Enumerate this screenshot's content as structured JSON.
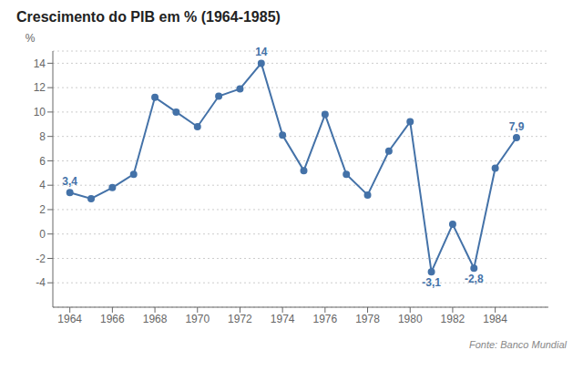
{
  "chart_data": {
    "type": "line",
    "title": "Crescimento do PIB em % (1964-1985)",
    "y_label": "%",
    "source": "Fonte: Banco Mundial",
    "x": [
      1964,
      1965,
      1966,
      1967,
      1968,
      1969,
      1970,
      1971,
      1972,
      1973,
      1974,
      1975,
      1976,
      1977,
      1978,
      1979,
      1980,
      1981,
      1982,
      1983,
      1984,
      1985
    ],
    "values": [
      3.4,
      2.9,
      3.8,
      4.9,
      11.2,
      10.0,
      8.8,
      11.3,
      11.9,
      14.0,
      8.1,
      5.2,
      9.8,
      4.9,
      3.2,
      6.8,
      9.2,
      -3.1,
      0.8,
      -2.8,
      5.4,
      7.9
    ],
    "color": "#4472a8",
    "marker": "circle",
    "xlim": [
      1963.2,
      1986.5
    ],
    "xticks": [
      1964,
      1966,
      1968,
      1970,
      1972,
      1974,
      1976,
      1978,
      1980,
      1982,
      1984
    ],
    "ylim": [
      -6,
      15
    ],
    "yticks": [
      -4,
      -2,
      0,
      2,
      4,
      6,
      8,
      10,
      12,
      14
    ],
    "grid": "y",
    "annotations": [
      {
        "text": "3,4",
        "x": 1964,
        "y": 3.4
      },
      {
        "text": "14",
        "x": 1973,
        "y": 14.0
      },
      {
        "text": "-3,1",
        "x": 1981,
        "y": -3.1
      },
      {
        "text": "-2,8",
        "x": 1983,
        "y": -2.8
      },
      {
        "text": "7,9",
        "x": 1985,
        "y": 7.9
      }
    ]
  }
}
